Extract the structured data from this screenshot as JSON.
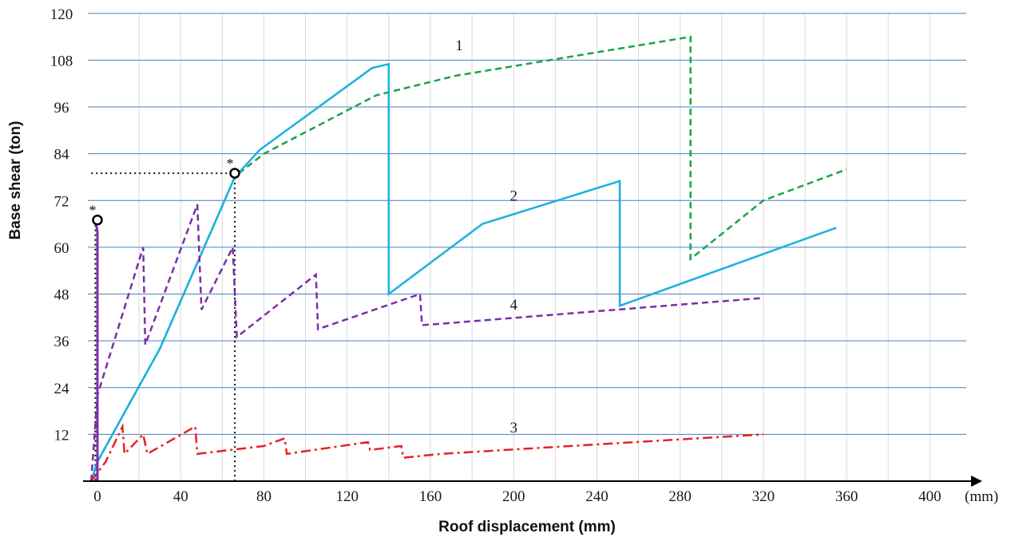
{
  "chart_data": {
    "type": "line",
    "title": "",
    "xlabel": "Roof displacement (mm)",
    "ylabel": "Base shear (ton)",
    "x_unit": "(mm)",
    "xlim": [
      -5,
      410
    ],
    "ylim": [
      0,
      120
    ],
    "x_ticks": [
      0,
      40,
      80,
      120,
      160,
      200,
      240,
      280,
      320,
      360,
      400
    ],
    "y_ticks": [
      12,
      24,
      36,
      48,
      60,
      72,
      84,
      96,
      108,
      120
    ],
    "x_minor_grid_step": 20,
    "grid": true,
    "colors": {
      "grid": "#4a7fc1",
      "minor_grid": "#d9d9d9",
      "axis": "#000000"
    },
    "series": [
      {
        "label": "1",
        "color": "#1aa34a",
        "dash": "dashed",
        "points": [
          [
            -3,
            0
          ],
          [
            0,
            5
          ],
          [
            30,
            34
          ],
          [
            66,
            78
          ],
          [
            68,
            79
          ],
          [
            80,
            84
          ],
          [
            134,
            99
          ],
          [
            172,
            104
          ],
          [
            285,
            114
          ],
          [
            285,
            57
          ],
          [
            320,
            72
          ],
          [
            340,
            76
          ],
          [
            360,
            80
          ]
        ]
      },
      {
        "label": "2",
        "color": "#1ab0e0",
        "dash": "solid",
        "points": [
          [
            -3,
            0
          ],
          [
            0,
            5
          ],
          [
            30,
            34
          ],
          [
            66,
            78
          ],
          [
            78,
            85
          ],
          [
            132,
            106
          ],
          [
            140,
            107
          ],
          [
            140,
            48
          ],
          [
            185,
            66
          ],
          [
            251,
            77
          ],
          [
            251,
            45
          ],
          [
            355,
            65
          ]
        ]
      },
      {
        "label": "3",
        "color": "#e82020",
        "dash": "dashdot",
        "points": [
          [
            -3,
            0
          ],
          [
            4,
            5
          ],
          [
            12,
            14
          ],
          [
            13,
            7
          ],
          [
            22,
            12
          ],
          [
            24,
            7
          ],
          [
            47,
            14
          ],
          [
            48,
            7
          ],
          [
            80,
            9
          ],
          [
            90,
            11
          ],
          [
            91,
            7
          ],
          [
            130,
            10
          ],
          [
            131,
            8
          ],
          [
            146,
            9
          ],
          [
            147,
            6
          ],
          [
            165,
            7
          ],
          [
            320,
            12
          ]
        ]
      },
      {
        "label": "4",
        "color": "#7b2fa8",
        "dash": "dashed",
        "points": [
          [
            -3,
            0
          ],
          [
            0,
            22
          ],
          [
            22,
            60
          ],
          [
            23,
            35
          ],
          [
            48,
            71
          ],
          [
            50,
            44
          ],
          [
            65,
            60
          ],
          [
            67,
            37
          ],
          [
            105,
            53
          ],
          [
            106,
            39
          ],
          [
            155,
            48
          ],
          [
            156,
            40
          ],
          [
            320,
            47
          ]
        ]
      },
      {
        "label": "",
        "color": "#7b2fa8",
        "dash": "solid",
        "points": [
          [
            0,
            0
          ],
          [
            0,
            64
          ],
          [
            -1,
            67
          ]
        ]
      }
    ],
    "markers": [
      {
        "label": "*",
        "x": 0,
        "y": 67
      },
      {
        "label": "*",
        "x": 66,
        "y": 79
      }
    ],
    "reference_lines": [
      {
        "from": [
          -3,
          79
        ],
        "to": [
          66,
          79
        ],
        "style": "dotted"
      },
      {
        "from": [
          66,
          79
        ],
        "to": [
          66,
          0
        ],
        "style": "dotted"
      },
      {
        "from": [
          -1,
          67
        ],
        "to": [
          -1,
          0
        ],
        "style": "dotted"
      }
    ]
  }
}
